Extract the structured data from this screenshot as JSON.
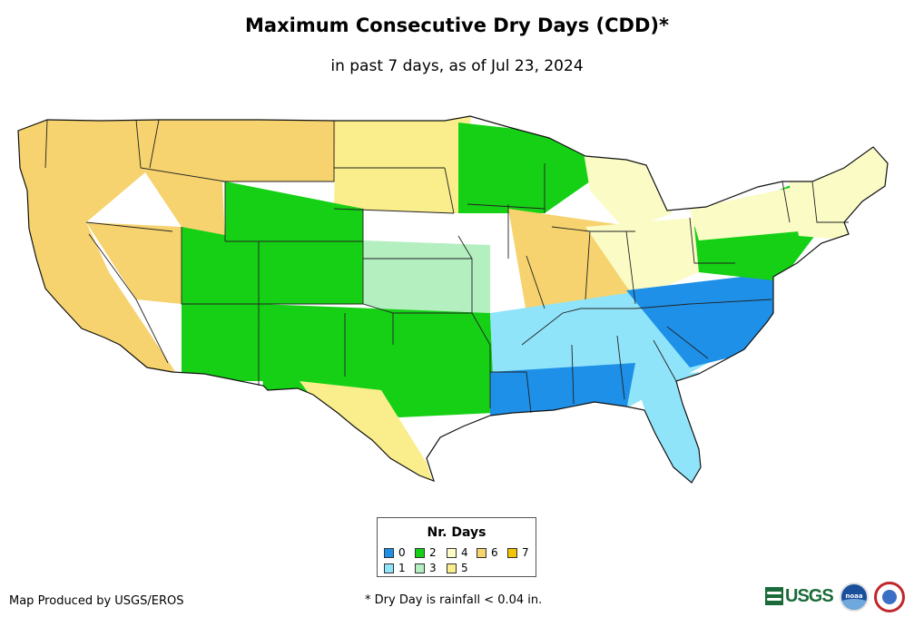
{
  "title": "Maximum Consecutive Dry Days (CDD)*",
  "subtitle": "in past 7 days, as of Jul 23, 2024",
  "legend": {
    "title": "Nr. Days",
    "items": [
      {
        "label": "0",
        "color": "#1e90e8"
      },
      {
        "label": "1",
        "color": "#90e4fa"
      },
      {
        "label": "2",
        "color": "#16d016"
      },
      {
        "label": "3",
        "color": "#b4efc0"
      },
      {
        "label": "4",
        "color": "#fbfbc6"
      },
      {
        "label": "5",
        "color": "#faed8c"
      },
      {
        "label": "6",
        "color": "#f6d36e"
      },
      {
        "label": "7",
        "color": "#f4c400"
      }
    ]
  },
  "credit": "Map Produced by USGS/EROS",
  "footnote": "* Dry Day is rainfall < 0.04 in.",
  "logos": {
    "usgs": "USGS",
    "noaa": "noaa",
    "nws": "nws-logo"
  },
  "map": {
    "name": "Contiguous United States",
    "regions": [
      {
        "name": "pacific-coast",
        "cdd": 6
      },
      {
        "name": "great-basin",
        "cdd": 6
      },
      {
        "name": "northern-rockies",
        "cdd": 6
      },
      {
        "name": "northern-plains",
        "cdd": 5
      },
      {
        "name": "four-corners",
        "cdd": 2
      },
      {
        "name": "southern-rockies",
        "cdd": 2
      },
      {
        "name": "central-plains",
        "cdd": 3
      },
      {
        "name": "southern-plains",
        "cdd": 2
      },
      {
        "name": "texas-west",
        "cdd": 5
      },
      {
        "name": "upper-midwest",
        "cdd": 2
      },
      {
        "name": "midwest-corn-belt",
        "cdd": 6
      },
      {
        "name": "ohio-valley",
        "cdd": 4
      },
      {
        "name": "great-lakes",
        "cdd": 4
      },
      {
        "name": "southeast",
        "cdd": 1
      },
      {
        "name": "gulf-coast",
        "cdd": 0
      },
      {
        "name": "carolinas",
        "cdd": 0
      },
      {
        "name": "mid-atlantic",
        "cdd": 2
      },
      {
        "name": "new-york",
        "cdd": 4
      },
      {
        "name": "new-england",
        "cdd": 4
      },
      {
        "name": "florida",
        "cdd": 1
      }
    ]
  }
}
